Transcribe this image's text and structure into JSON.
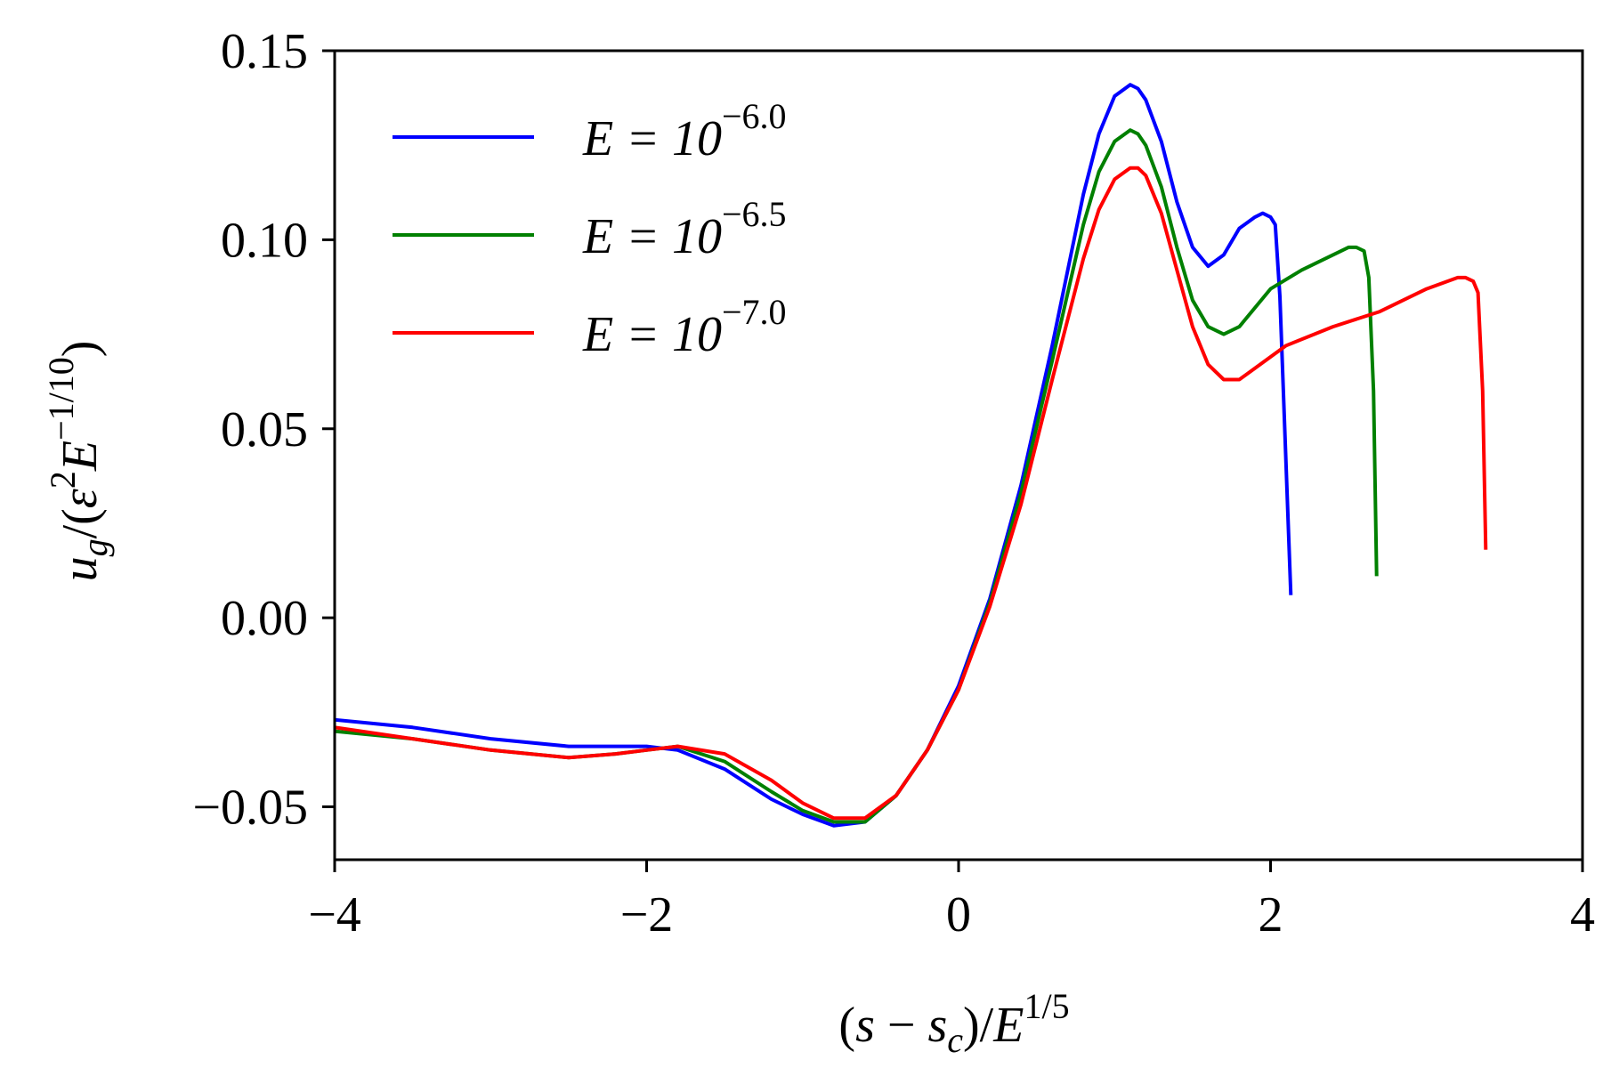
{
  "chart_data": {
    "type": "line",
    "xlabel": "(s − s_c)/E^{1/5}",
    "ylabel": "u_g/(ε²E^{−1/10})",
    "xlim": [
      -4,
      4
    ],
    "ylim": [
      -0.064,
      0.15
    ],
    "xticks": [
      -4,
      -2,
      0,
      2,
      4
    ],
    "xtick_labels": [
      "−4",
      "−2",
      "0",
      "2",
      "4"
    ],
    "yticks": [
      -0.05,
      0.0,
      0.05,
      0.1,
      0.15
    ],
    "ytick_labels": [
      "−0.05",
      "0.00",
      "0.05",
      "0.10",
      "0.15"
    ],
    "grid": false,
    "legend_position": "top-left",
    "series": [
      {
        "name": "E = 10^{−6.0}",
        "legend_base": "E = 10",
        "legend_exp": "−6.0",
        "color": "#0000ff",
        "x": [
          -4.0,
          -3.5,
          -3.0,
          -2.5,
          -2.2,
          -2.0,
          -1.8,
          -1.5,
          -1.2,
          -1.0,
          -0.8,
          -0.6,
          -0.4,
          -0.2,
          0.0,
          0.2,
          0.4,
          0.6,
          0.8,
          0.9,
          1.0,
          1.1,
          1.15,
          1.2,
          1.3,
          1.4,
          1.5,
          1.6,
          1.7,
          1.8,
          1.9,
          1.95,
          2.0,
          2.03,
          2.06,
          2.1,
          2.13
        ],
        "y": [
          -0.027,
          -0.029,
          -0.032,
          -0.034,
          -0.034,
          -0.034,
          -0.035,
          -0.04,
          -0.048,
          -0.052,
          -0.055,
          -0.054,
          -0.047,
          -0.035,
          -0.018,
          0.005,
          0.035,
          0.072,
          0.112,
          0.128,
          0.138,
          0.141,
          0.14,
          0.137,
          0.126,
          0.11,
          0.098,
          0.093,
          0.096,
          0.103,
          0.106,
          0.107,
          0.106,
          0.104,
          0.085,
          0.04,
          0.006
        ]
      },
      {
        "name": "E = 10^{−6.5}",
        "legend_base": "E = 10",
        "legend_exp": "−6.5",
        "color": "#008000",
        "x": [
          -4.0,
          -3.5,
          -3.0,
          -2.5,
          -2.2,
          -2.0,
          -1.8,
          -1.5,
          -1.2,
          -1.0,
          -0.8,
          -0.6,
          -0.4,
          -0.2,
          0.0,
          0.2,
          0.4,
          0.6,
          0.8,
          0.9,
          1.0,
          1.1,
          1.15,
          1.2,
          1.3,
          1.4,
          1.5,
          1.6,
          1.7,
          1.8,
          2.0,
          2.2,
          2.4,
          2.5,
          2.55,
          2.6,
          2.63,
          2.66,
          2.68
        ],
        "y": [
          -0.03,
          -0.032,
          -0.035,
          -0.037,
          -0.036,
          -0.035,
          -0.034,
          -0.038,
          -0.046,
          -0.051,
          -0.054,
          -0.054,
          -0.047,
          -0.035,
          -0.019,
          0.004,
          0.033,
          0.068,
          0.104,
          0.118,
          0.126,
          0.129,
          0.128,
          0.125,
          0.114,
          0.098,
          0.084,
          0.077,
          0.075,
          0.077,
          0.087,
          0.092,
          0.096,
          0.098,
          0.098,
          0.097,
          0.09,
          0.06,
          0.011
        ]
      },
      {
        "name": "E = 10^{−7.0}",
        "legend_base": "E = 10",
        "legend_exp": "−7.0",
        "color": "#ff0000",
        "x": [
          -4.0,
          -3.5,
          -3.0,
          -2.5,
          -2.2,
          -2.0,
          -1.8,
          -1.5,
          -1.2,
          -1.0,
          -0.8,
          -0.6,
          -0.4,
          -0.2,
          0.0,
          0.2,
          0.4,
          0.6,
          0.8,
          0.9,
          1.0,
          1.1,
          1.15,
          1.2,
          1.3,
          1.4,
          1.5,
          1.6,
          1.7,
          1.8,
          1.9,
          2.1,
          2.4,
          2.7,
          3.0,
          3.2,
          3.25,
          3.3,
          3.33,
          3.36,
          3.38
        ],
        "y": [
          -0.029,
          -0.032,
          -0.035,
          -0.037,
          -0.036,
          -0.035,
          -0.034,
          -0.036,
          -0.043,
          -0.049,
          -0.053,
          -0.053,
          -0.047,
          -0.035,
          -0.019,
          0.003,
          0.03,
          0.063,
          0.095,
          0.108,
          0.116,
          0.119,
          0.119,
          0.117,
          0.107,
          0.092,
          0.077,
          0.067,
          0.063,
          0.063,
          0.066,
          0.072,
          0.077,
          0.081,
          0.087,
          0.09,
          0.09,
          0.089,
          0.086,
          0.06,
          0.018
        ]
      }
    ]
  }
}
